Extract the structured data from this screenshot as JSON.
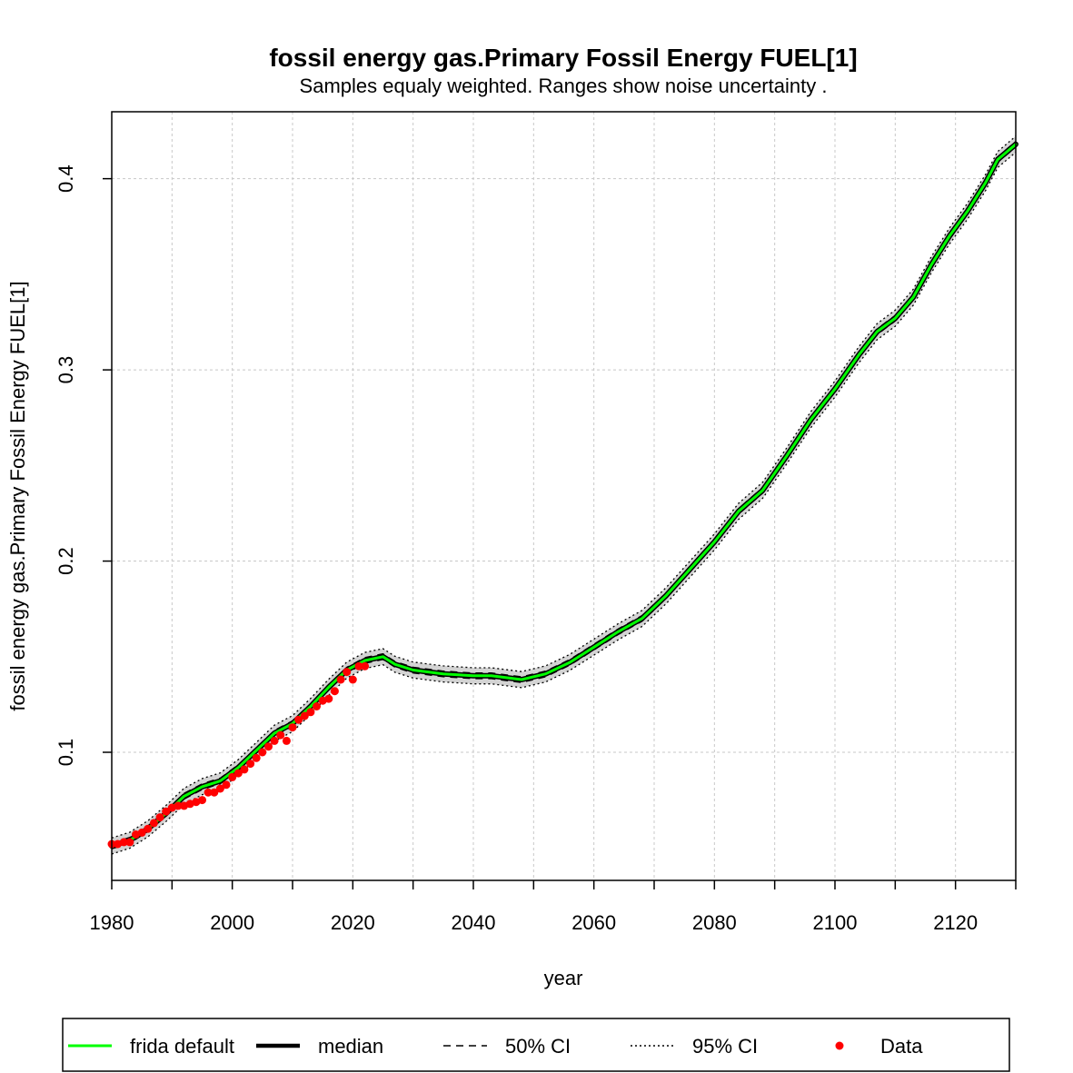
{
  "chart_data": {
    "type": "line",
    "title": "fossil energy gas.Primary Fossil Energy FUEL[1]",
    "subtitle": "Samples equaly weighted. Ranges show  noise uncertainty .",
    "xlabel": "year",
    "ylabel": "fossil energy gas.Primary Fossil Energy FUEL[1]",
    "xlim": [
      1980,
      2130
    ],
    "ylim": [
      0.033,
      0.435
    ],
    "x_ticks": [
      1980,
      2000,
      2020,
      2040,
      2060,
      2080,
      2100,
      2120
    ],
    "x_minor_ticks": [
      1990,
      2010,
      2030,
      2050,
      2070,
      2090,
      2110,
      2130
    ],
    "y_ticks": [
      0.1,
      0.2,
      0.3,
      0.4
    ],
    "y_tick_labels": [
      "0.1",
      "0.2",
      "0.3",
      "0.4"
    ],
    "grid": true,
    "legend_position": "bottom",
    "colors": {
      "frida_default": "#00ff00",
      "median": "#000000",
      "data": "#ff0000",
      "band": "#d3d3d3",
      "grid": "#c8c8c8"
    },
    "band_halfwidth_50": 0.0015,
    "band_halfwidth_95": 0.0042,
    "series": [
      {
        "name": "frida default",
        "x": [
          1980,
          1983,
          1986,
          1989,
          1992,
          1995,
          1998,
          2001,
          2004,
          2007,
          2010,
          2013,
          2016,
          2019,
          2022,
          2025,
          2027,
          2030,
          2035,
          2040,
          2043,
          2048,
          2052,
          2056,
          2060,
          2064,
          2068,
          2072,
          2076,
          2080,
          2084,
          2088,
          2092,
          2096,
          2100,
          2104,
          2107,
          2110,
          2113,
          2116,
          2119,
          2122,
          2125,
          2127,
          2130
        ],
        "y": [
          0.051,
          0.054,
          0.06,
          0.068,
          0.077,
          0.082,
          0.085,
          0.092,
          0.101,
          0.11,
          0.115,
          0.124,
          0.134,
          0.143,
          0.148,
          0.15,
          0.146,
          0.143,
          0.141,
          0.14,
          0.14,
          0.138,
          0.141,
          0.147,
          0.155,
          0.163,
          0.17,
          0.182,
          0.196,
          0.21,
          0.226,
          0.237,
          0.255,
          0.274,
          0.29,
          0.308,
          0.32,
          0.327,
          0.338,
          0.355,
          0.37,
          0.383,
          0.398,
          0.41,
          0.418
        ]
      },
      {
        "name": "median",
        "x": [
          1980,
          1983,
          1986,
          1989,
          1992,
          1995,
          1998,
          2001,
          2004,
          2007,
          2010,
          2013,
          2016,
          2019,
          2022,
          2025,
          2027,
          2030,
          2035,
          2040,
          2043,
          2048,
          2052,
          2056,
          2060,
          2064,
          2068,
          2072,
          2076,
          2080,
          2084,
          2088,
          2092,
          2096,
          2100,
          2104,
          2107,
          2110,
          2113,
          2116,
          2119,
          2122,
          2125,
          2127,
          2130
        ],
        "y": [
          0.051,
          0.054,
          0.06,
          0.068,
          0.077,
          0.082,
          0.085,
          0.092,
          0.101,
          0.11,
          0.115,
          0.124,
          0.134,
          0.143,
          0.148,
          0.15,
          0.146,
          0.143,
          0.141,
          0.14,
          0.14,
          0.138,
          0.141,
          0.147,
          0.155,
          0.163,
          0.17,
          0.182,
          0.196,
          0.21,
          0.226,
          0.237,
          0.255,
          0.274,
          0.29,
          0.308,
          0.32,
          0.327,
          0.338,
          0.355,
          0.37,
          0.383,
          0.398,
          0.41,
          0.418
        ]
      },
      {
        "name": "Data",
        "x": [
          1980,
          1981,
          1982,
          1983,
          1984,
          1985,
          1986,
          1987,
          1988,
          1989,
          1990,
          1991,
          1992,
          1993,
          1994,
          1995,
          1996,
          1997,
          1998,
          1999,
          2000,
          2001,
          2002,
          2003,
          2004,
          2005,
          2006,
          2007,
          2008,
          2009,
          2010,
          2011,
          2012,
          2013,
          2014,
          2015,
          2016,
          2017,
          2018,
          2019,
          2020,
          2021,
          2022
        ],
        "y": [
          0.052,
          0.052,
          0.053,
          0.053,
          0.057,
          0.058,
          0.06,
          0.063,
          0.066,
          0.069,
          0.071,
          0.072,
          0.072,
          0.073,
          0.074,
          0.075,
          0.079,
          0.079,
          0.081,
          0.083,
          0.087,
          0.089,
          0.091,
          0.094,
          0.097,
          0.1,
          0.103,
          0.106,
          0.109,
          0.106,
          0.113,
          0.117,
          0.119,
          0.121,
          0.124,
          0.127,
          0.128,
          0.132,
          0.138,
          0.142,
          0.138,
          0.145,
          0.145
        ]
      }
    ]
  },
  "legend": {
    "items": [
      {
        "label": "frida default",
        "style": "solid-green"
      },
      {
        "label": "median",
        "style": "solid-thick-black"
      },
      {
        "label": "50% CI",
        "style": "dashed"
      },
      {
        "label": "95% CI",
        "style": "dotted"
      },
      {
        "label": "Data",
        "style": "red-point"
      }
    ]
  }
}
